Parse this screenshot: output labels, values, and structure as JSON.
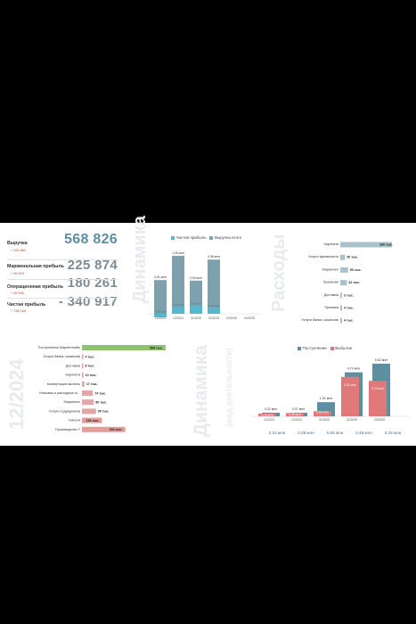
{
  "kpis": [
    {
      "label": "Выручка",
      "delta": "+ 151 861",
      "value": "568 826"
    },
    {
      "label": "Маржинальная прибыль",
      "delta": "+ 30 419",
      "value": "225 874"
    },
    {
      "label": "Операционная прибыль",
      "delta": "+ 45 940",
      "value": "180 261"
    },
    {
      "label": "Чистая прибыль",
      "delta": "+ 736 169",
      "value": "- 340 917"
    }
  ],
  "watermarks": {
    "dynamics": "Динамика",
    "expenses": "Расходы",
    "period": "12/2024",
    "dynamics2": "Динамика",
    "sub": "(вид деятельности)"
  },
  "colors": {
    "teal": "#5d8fa1",
    "cyan": "#56b8cc",
    "green": "#8dc26f",
    "red": "#e07a7a",
    "darkred": "#c94e4e",
    "slate": "#7fa0ad"
  },
  "chart_data": [
    {
      "type": "bar",
      "title": "",
      "series": [
        {
          "name": "Выручка итого",
          "values": [
            0.61,
            1.05,
            0.6,
            0.98,
            0,
            0
          ],
          "labels": [
            "0,61 млн",
            "1,05 млн",
            "0,60 млн",
            "0,98 млн",
            "",
            ""
          ]
        },
        {
          "name": "Чистая прибыль",
          "values": [
            -0.06,
            0.17,
            0.22,
            0.15,
            0,
            0
          ],
          "labels": [
            "-0,06 млн",
            "0,17 млн",
            "0,22 млн",
            "0,15 млн",
            "",
            ""
          ]
        }
      ],
      "categories": [
        "12/2024",
        "12/2024",
        "01/2025",
        "02/2025",
        "03/2025",
        "04/2025"
      ],
      "legend": "top"
    },
    {
      "type": "bar",
      "orientation": "horizontal",
      "categories": [
        "Зарплата",
        "Услуги финансиста",
        "Маркетинг",
        "Хранение",
        "Доставка",
        "Приемка",
        "Услуги банка, комиссии"
      ],
      "values": [
        330,
        30,
        50,
        42,
        3,
        4,
        4
      ],
      "labels": [
        "330 тыс.",
        "30 тыс.",
        "50 тыс.",
        "42 тыс.",
        "3 тыс.",
        "4 тыс.",
        "4 тыс."
      ]
    },
    {
      "type": "bar",
      "orientation": "horizontal",
      "categories": [
        "Поступления Маркетплейс",
        "Услуги банка, комиссии",
        "Доставка",
        "Зарплата",
        "Конвертация валюты",
        "Упаковка и расходные м...",
        "Маркетинг",
        "Услуги подрядчиков",
        "Налоги",
        "Производство Т"
      ],
      "values": [
        568,
        4,
        8,
        10,
        17,
        74,
        80,
        95,
        136,
        294
      ],
      "labels": [
        "568 тыс.",
        "4 тыс.",
        "8 тыс.",
        "10 тыс.",
        "17 тыс.",
        "74 тыс.",
        "80 тыс.",
        "95 тыс.",
        "136 тыс.",
        "294 тыс."
      ]
    },
    {
      "type": "bar",
      "series": [
        {
          "name": "Поступление",
          "values": [
            0.32,
            0.37,
            1.51,
            4.7,
            5.62
          ],
          "labels": [
            "0,32 млн",
            "0,37 млн",
            "1,51 млн",
            "4,70 млн",
            "5,62 млн"
          ]
        },
        {
          "name": "Выбытие",
          "values": [
            0.16,
            0.35,
            0.55,
            4.21,
            3.79
          ],
          "labels": [
            "0,16 млн",
            "0,35 млн",
            "0,55 млн",
            "4,21 млн",
            "3,79 млн"
          ]
        }
      ],
      "categories": [
        "11/2024",
        "12/2024",
        "01/2025",
        "02/2025",
        "03/2025"
      ],
      "footer": [
        "0,16 млн",
        "0,35 млн",
        "0,55 млн",
        "0,49 млн",
        "0,26 млн"
      ],
      "legend": "top"
    }
  ]
}
